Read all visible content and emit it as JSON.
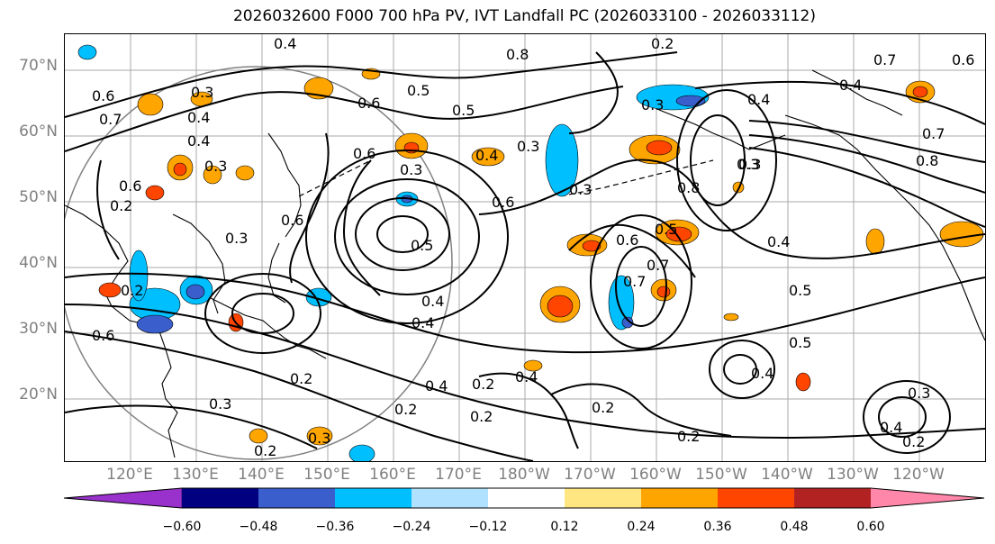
{
  "title": "2026032600 F000 700 hPa PV, IVT Landfall PC (2026033100 - 2026033112)",
  "lat_labels": [
    "70°N",
    "60°N",
    "50°N",
    "40°N",
    "30°N",
    "20°N"
  ],
  "lon_labels": [
    "120°E",
    "130°E",
    "140°E",
    "150°E",
    "160°E",
    "170°E",
    "180°W",
    "170°W",
    "160°W",
    "150°W",
    "140°W",
    "130°W",
    "120°W"
  ],
  "contour_labels": [
    "0.4",
    "0.8",
    "0.2",
    "0.7",
    "0.6",
    "0.6",
    "0.5",
    "0.6",
    "0.5",
    "0.3",
    "0.7",
    "0.3",
    "0.4",
    "0.3",
    "0.4",
    "0.6",
    "0.3",
    "0.3",
    "0.4",
    "0.3",
    "0.4",
    "0.2",
    "0.5",
    "0.2",
    "0.3",
    "0.2",
    "0.3",
    "0.2",
    "0.4",
    "0.2",
    "0.2",
    "0.3",
    "0.6",
    "0.2",
    "0.2",
    "0.4",
    "0.4",
    "0.6",
    "0.7",
    "0.7",
    "0.5",
    "0.6",
    "0.8",
    "0.5",
    "0.3",
    "0.6",
    "0.7",
    "0.8",
    "0.3",
    "0.4",
    "0.4",
    "0.5",
    "0.4",
    "0.3",
    "0.2",
    "0.6",
    "0.4",
    "0.2",
    "0.4"
  ],
  "colorbar": {
    "colors": [
      "#9932cc",
      "#000080",
      "#3a5fcd",
      "#00bfff",
      "#b0e2ff",
      "#ffffff",
      "#ffe680",
      "#ffa500",
      "#ff4500",
      "#b22222",
      "#ff88aa"
    ],
    "tick_labels": [
      "−0.60",
      "−0.48",
      "−0.36",
      "−0.24",
      "−0.12",
      "0.12",
      "0.24",
      "0.36",
      "0.48",
      "0.60"
    ]
  }
}
